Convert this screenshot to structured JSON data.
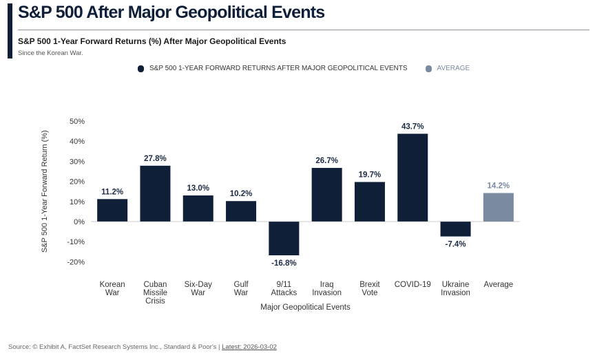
{
  "header": {
    "title": "S&P 500 After Major Geopolitical Events",
    "subtitle": "S&P 500 1-Year Forward Returns (%) After Major Geopolitical Events",
    "note": "Since the Korean War."
  },
  "legend": [
    {
      "label": "S&P 500 1-YEAR FORWARD RETURNS AFTER MAJOR GEOPOLITICAL EVENTS",
      "color": "#0f1f38"
    },
    {
      "label": "AVERAGE",
      "color": "#7a8aa0"
    }
  ],
  "footer": {
    "source": "Source: © Exhibit A, FactSet Research Systems Inc., Standard & Poor's",
    "separator": "|",
    "latest": "Latest: 2026-03-02"
  },
  "chart_data": {
    "type": "bar",
    "categories": [
      [
        "Korean",
        "War"
      ],
      [
        "Cuban",
        "Missile",
        "Crisis"
      ],
      [
        "Six-Day",
        "War"
      ],
      [
        "Gulf",
        "War"
      ],
      [
        "9/11",
        "Attacks"
      ],
      [
        "Iraq",
        "Invasion"
      ],
      [
        "Brexit",
        "Vote"
      ],
      [
        "COVID-19"
      ],
      [
        "Ukraine",
        "Invasion"
      ],
      [
        "Average"
      ]
    ],
    "values": [
      11.2,
      27.8,
      13.0,
      10.2,
      -16.8,
      26.7,
      19.7,
      43.7,
      -7.4,
      14.2
    ],
    "data_labels": [
      "11.2%",
      "27.8%",
      "13.0%",
      "10.2%",
      "-16.8%",
      "26.7%",
      "19.7%",
      "43.7%",
      "-7.4%",
      "14.2%"
    ],
    "colors": [
      "#0f1f38",
      "#0f1f38",
      "#0f1f38",
      "#0f1f38",
      "#0f1f38",
      "#0f1f38",
      "#0f1f38",
      "#0f1f38",
      "#0f1f38",
      "#7a8aa0"
    ],
    "xlabel": "Major Geopolitical Events",
    "ylabel": "S&P 500 1-Year Forward Return (%)",
    "ylim": [
      -20,
      50
    ],
    "yticks": [
      "-20%",
      "-10%",
      "0%",
      "10%",
      "20%",
      "30%",
      "40%",
      "50%"
    ],
    "grid": false
  }
}
